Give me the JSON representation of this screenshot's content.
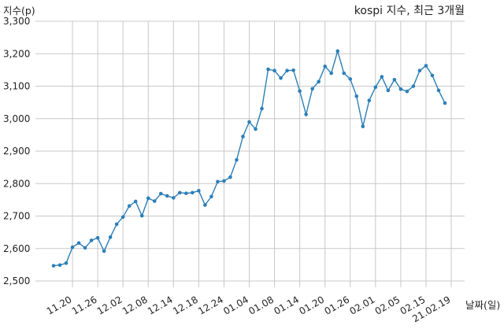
{
  "chart_data": {
    "type": "line",
    "title": "kospi 지수, 최근 3개월",
    "xlabel": "날짜(일)",
    "ylabel": "지수(p)",
    "ylim": [
      2500,
      3300
    ],
    "yticks": [
      "2,500",
      "2,600",
      "2,700",
      "2,800",
      "2,900",
      "3,000",
      "3,100",
      "3,200",
      "3,300"
    ],
    "xtick_labels": [
      "11.20",
      "11.26",
      "12.02",
      "12.08",
      "12.14",
      "12.18",
      "12.24",
      "01.04",
      "01.08",
      "01.14",
      "01.20",
      "01.26",
      "02.01",
      "02.05",
      "02.15",
      "21.02.19"
    ],
    "xtick_indices": [
      3,
      7,
      11,
      15,
      19,
      23,
      27,
      31,
      35,
      39,
      43,
      47,
      51,
      55,
      59,
      63
    ],
    "grid": true,
    "line_color": "#2c7fb8",
    "series": [
      {
        "name": "",
        "values": [
          2547,
          2549,
          2555,
          2604,
          2617,
          2602,
          2625,
          2633,
          2592,
          2635,
          2675,
          2697,
          2731,
          2745,
          2701,
          2755,
          2746,
          2769,
          2762,
          2756,
          2772,
          2770,
          2772,
          2778,
          2734,
          2760,
          2806,
          2808,
          2820,
          2873,
          2945,
          2990,
          2968,
          3031,
          3152,
          3148,
          3125,
          3148,
          3149,
          3085,
          3013,
          3092,
          3114,
          3161,
          3140,
          3208,
          3140,
          3122,
          3069,
          2976,
          3056,
          3097,
          3129,
          3087,
          3120,
          3091,
          3084,
          3100,
          3148,
          3163,
          3133,
          3087,
          3048
        ]
      }
    ]
  }
}
